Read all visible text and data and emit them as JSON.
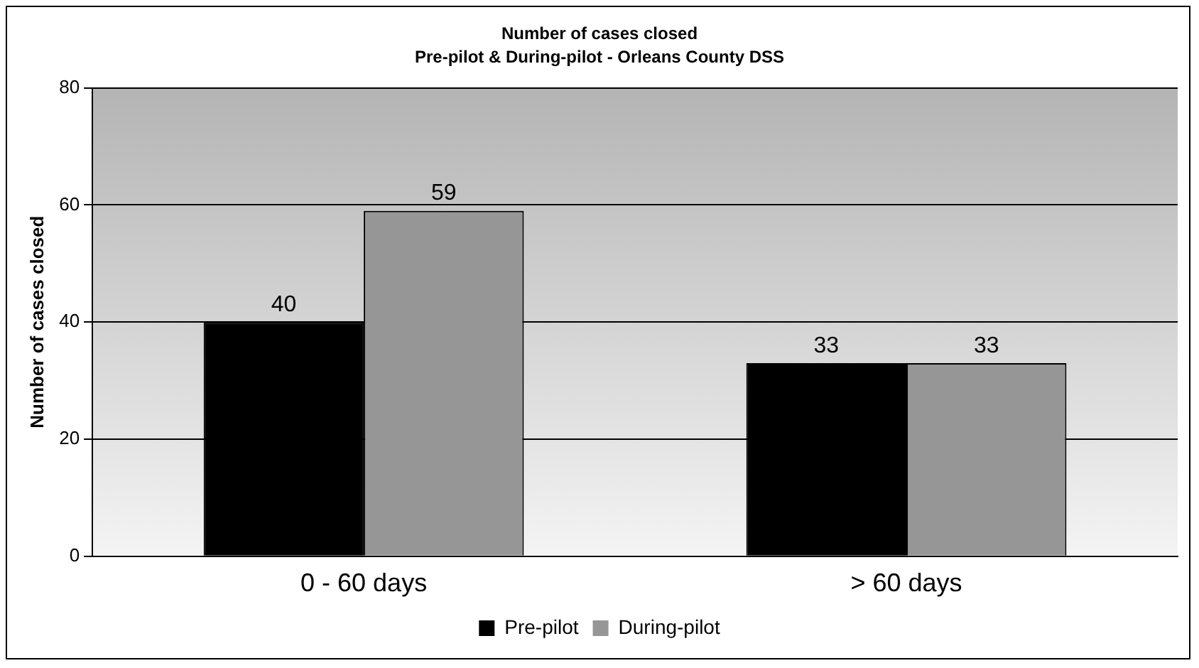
{
  "chart_data": {
    "type": "bar",
    "title": "Number of cases closed",
    "subtitle": "Pre-pilot & During-pilot - Orleans County DSS",
    "ylabel": "Number of cases closed",
    "categories": [
      "0 - 60 days",
      "> 60 days"
    ],
    "series": [
      {
        "name": "Pre-pilot",
        "color": "#000000",
        "values": [
          40,
          33
        ]
      },
      {
        "name": "During-pilot",
        "color": "#969696",
        "values": [
          59,
          33
        ]
      }
    ],
    "ylim": [
      0,
      80
    ],
    "yticks": [
      0,
      20,
      40,
      60,
      80
    ],
    "grid": "y",
    "legend": "bottom",
    "data_labels": true
  }
}
